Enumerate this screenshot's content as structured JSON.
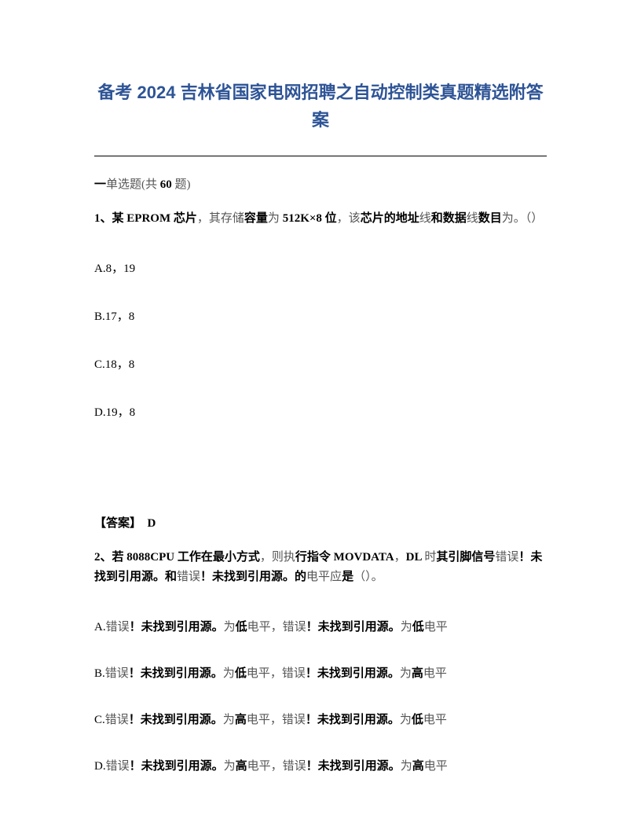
{
  "title": "备考 2024 吉林省国家电网招聘之自动控制类真题精选附答案",
  "section": {
    "prefix": "一",
    "type": "单选题",
    "count_prefix": "(共 ",
    "count": "60",
    "count_suffix": " 题)"
  },
  "q1": {
    "number": "1、",
    "bold1": "某",
    "text1": " EPROM ",
    "bold2": "芯片",
    "light1": "，其存",
    "light2": "储",
    "bold3": "容量",
    "light3": "为",
    "text2": " 512K×8 ",
    "bold4": "位",
    "light4": "，该",
    "bold5": "芯片的地址",
    "light5": "线",
    "bold6": "和数据",
    "light6": "线",
    "bold7": "数目",
    "light7": "为。（）",
    "optA": "A.8，19",
    "optB": "B.17，8",
    "optC": "C.18，8",
    "optD": "D.19，8",
    "answerLabel": "【答案】",
    "answerValue": "D"
  },
  "q2": {
    "number": "2、",
    "bold1": "若",
    "text1": " 8088CPU ",
    "bold2": "工作在最小方式",
    "light1": "，则执",
    "bold3": "行指令",
    "text2": " MOVDATA",
    "light2": "，",
    "text3": "DL ",
    "light3": "时",
    "bold4": "其引脚信号",
    "light4": "错误",
    "bold5": "！未找到引用源。和",
    "light5": "错误",
    "bold6": "！未找到引用源。的",
    "light6": "电平应",
    "bold7": "是",
    "light7": "（）。",
    "optA_prefix": "A.",
    "optA_light1": "错误",
    "optA_bold1": "！未找到引用源。",
    "optA_light2": "为",
    "optA_bold2": "低",
    "optA_light3": "电平，错误",
    "optA_bold3": "！未找到引用源。",
    "optA_light4": "为",
    "optA_bold4": "低",
    "optA_light5": "电平",
    "optB_prefix": "B.",
    "optB_light1": "错误",
    "optB_bold1": "！未找到引用源。",
    "optB_light2": "为",
    "optB_bold2": "低",
    "optB_light3": "电平，错误",
    "optB_bold3": "！未找到引用源。",
    "optB_light4": "为",
    "optB_bold4": "高",
    "optB_light5": "电平",
    "optC_prefix": "C.",
    "optC_light1": "错误",
    "optC_bold1": "！未找到引用源。",
    "optC_light2": "为",
    "optC_bold2": "高",
    "optC_light3": "电平，错误",
    "optC_bold3": "！未找到引用源。",
    "optC_light4": "为",
    "optC_bold4": "低",
    "optC_light5": "电平",
    "optD_prefix": "D.",
    "optD_light1": "错误",
    "optD_bold1": "！未找到引用源。",
    "optD_light2": "为",
    "optD_bold2": "高",
    "optD_light3": "电平，错误",
    "optD_bold3": "！未找到引用源。",
    "optD_light4": "为",
    "optD_bold4": "高",
    "optD_light5": "电平"
  },
  "colors": {
    "title": "#2e5496",
    "text": "#000000",
    "light": "#555555",
    "background": "#ffffff"
  }
}
